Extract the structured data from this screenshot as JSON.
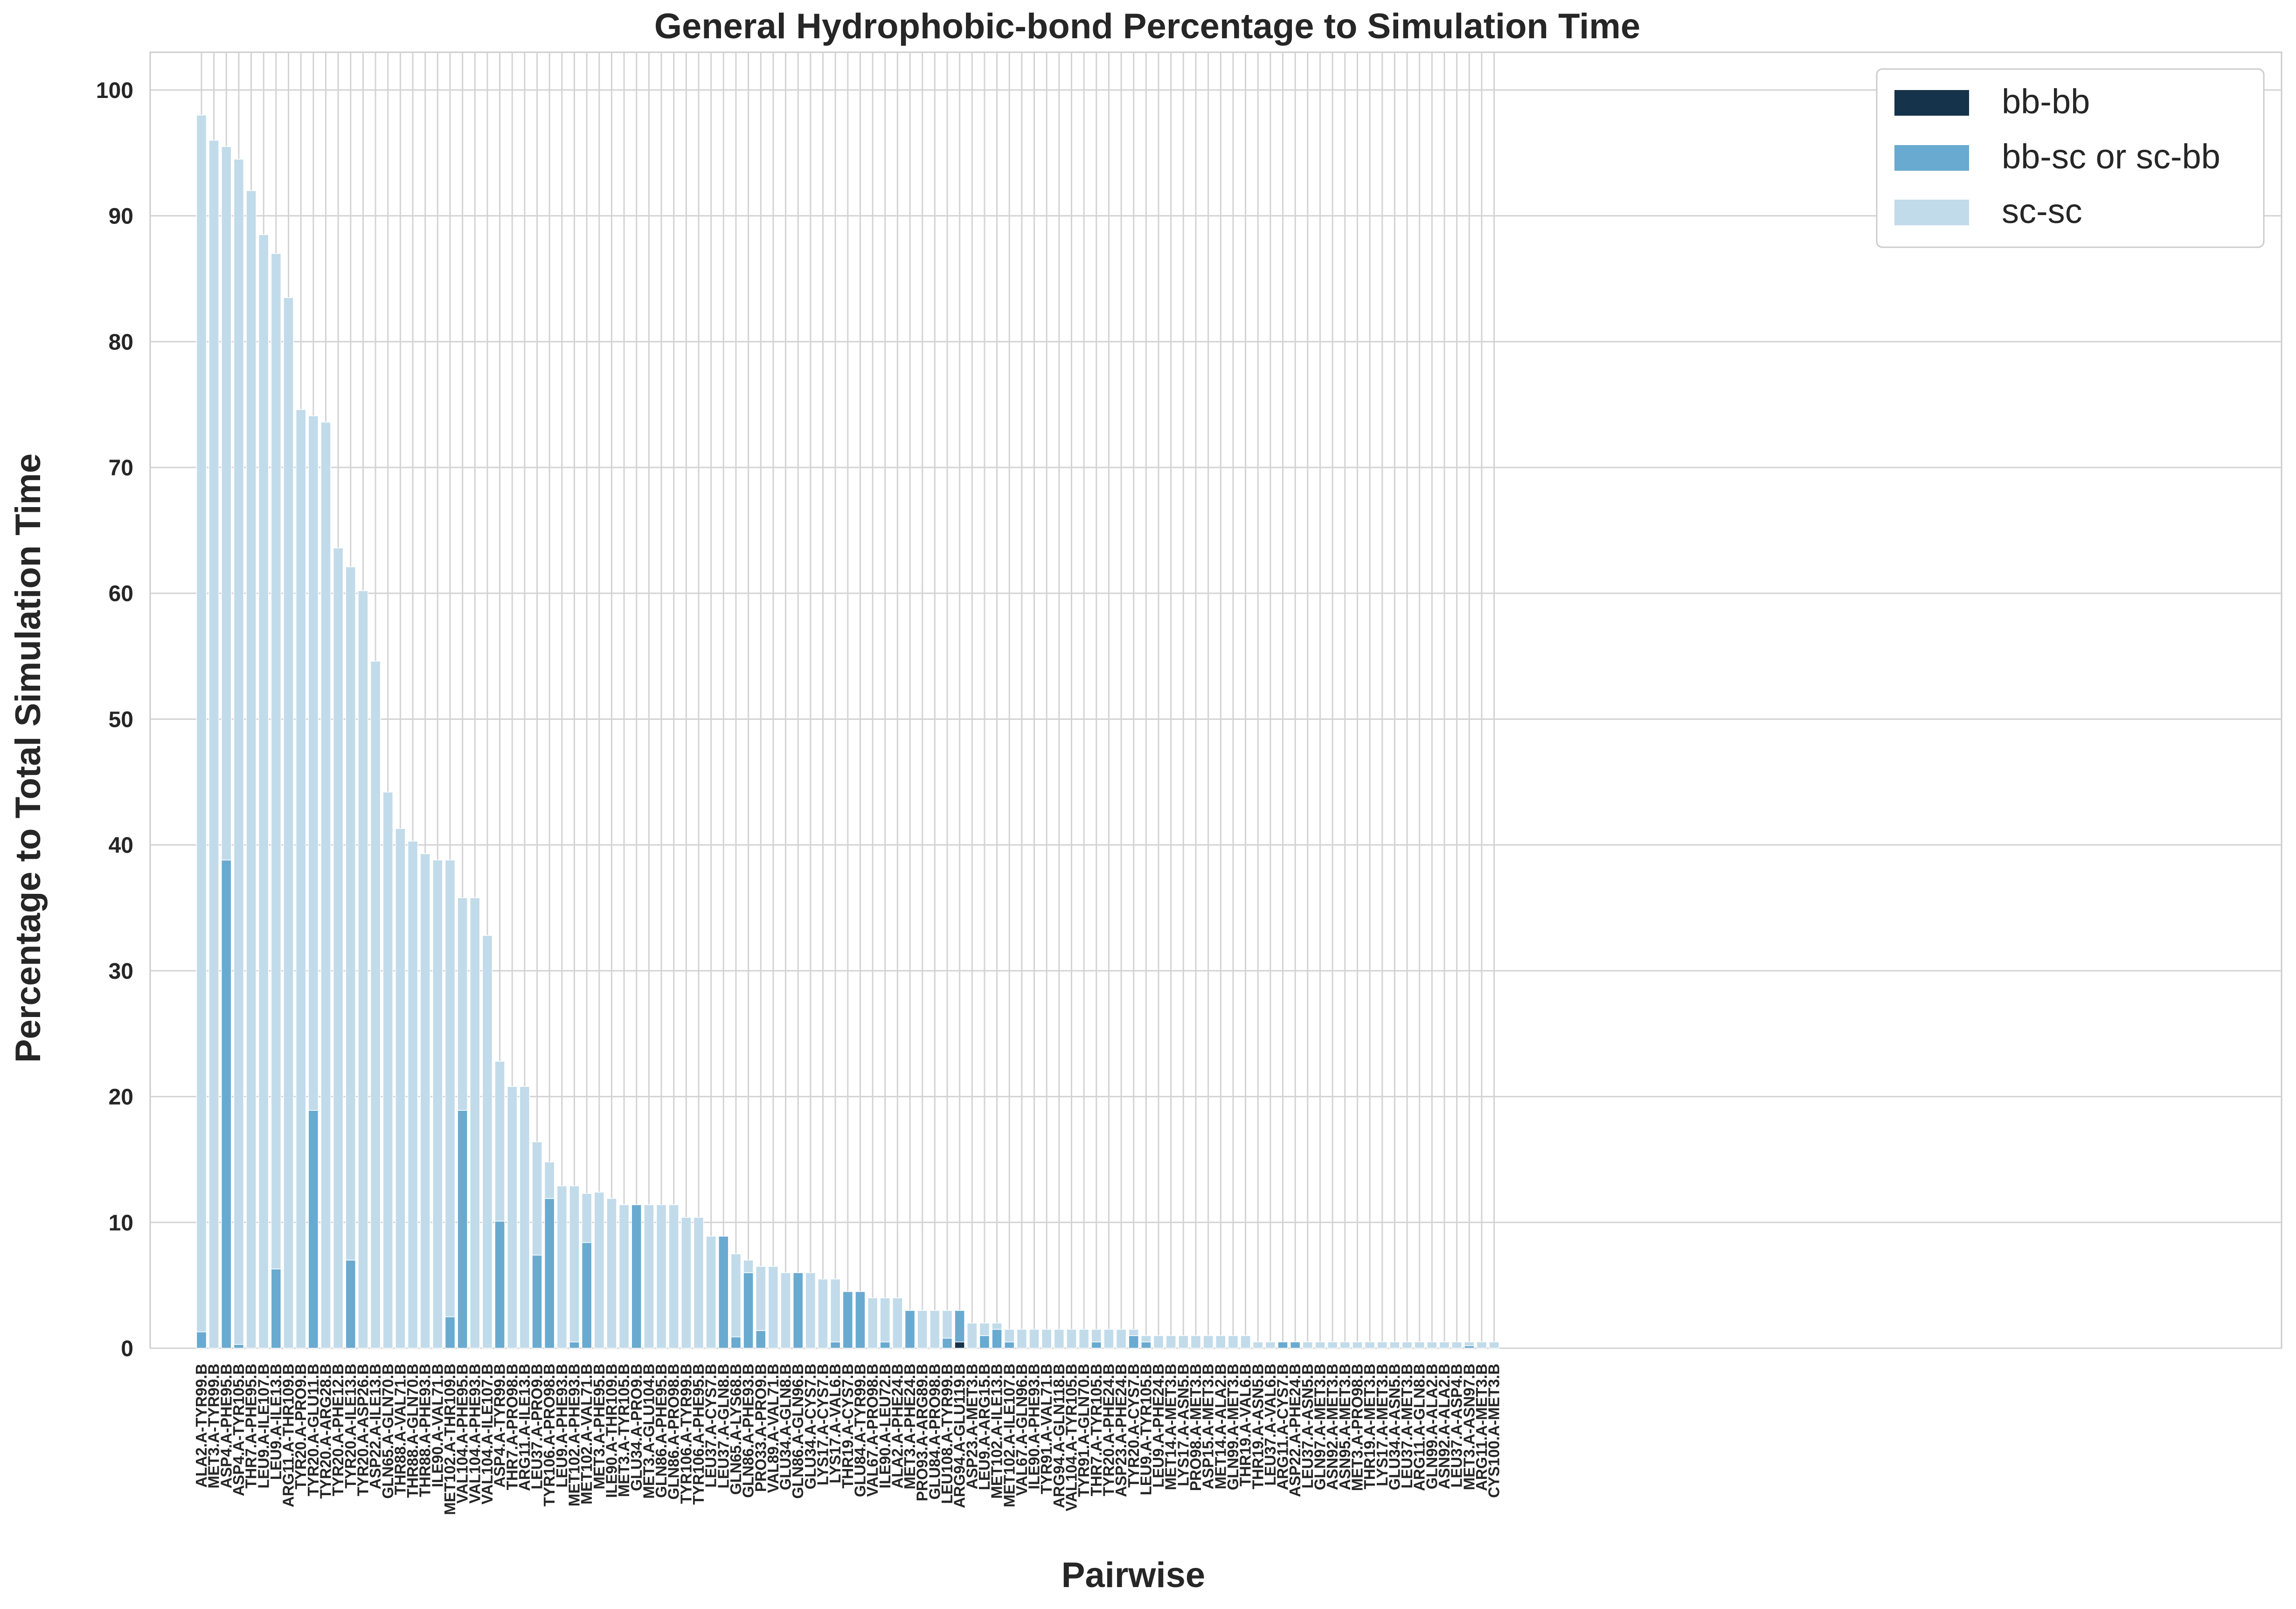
{
  "chart_data": {
    "type": "bar",
    "stacked": true,
    "title": "General Hydrophobic-bond Percentage to Simulation Time",
    "xlabel": "Pairwise",
    "ylabel": "Percentage to Total Simulation Time",
    "ylim": [
      0,
      103
    ],
    "yticks": [
      0,
      10,
      20,
      30,
      40,
      50,
      60,
      70,
      80,
      90,
      100
    ],
    "grid": true,
    "legend_position": "top-right",
    "categories": [
      "ALA2.A-TYR99.B",
      "MET3.A-TYR99.B",
      "ASP4.A-PHE95.B",
      "ASP4.A-TYR105.B",
      "THR7.A-PHE95.B",
      "LEU9.A-ILE107.B",
      "LEU9.A-ILE13.B",
      "ARG11.A-THR109.B",
      "TYR20.A-PRO9.B",
      "TYR20.A-GLU11.B",
      "TYR20.A-ARG28.B",
      "TYR20.A-PHE12.B",
      "TYR20.A-ILE13.B",
      "TYR20.A-ASP26.B",
      "ASP22.A-ILE13.B",
      "GLN65.A-GLN70.B",
      "THR88.A-VAL71.B",
      "THR88.A-GLN70.B",
      "THR88.A-PHE93.B",
      "ILE90.A-VAL71.B",
      "MET102.A-THR109.B",
      "VAL104.A-PHE95.B",
      "VAL104.A-PHE93.B",
      "VAL104.A-ILE107.B",
      "ASP4.A-TYR99.B",
      "THR7.A-PRO98.B",
      "ARG11.A-ILE13.B",
      "LEU37.A-PRO9.B",
      "TYR106.A-PRO98.B",
      "LEU9.A-PHE93.B",
      "MET102.A-PHE93.B",
      "MET102.A-VAL71.B",
      "MET3.A-PHE95.B",
      "ILE90.A-THR109.B",
      "MET3.A-TYR105.B",
      "GLU34.A-PRO9.B",
      "MET3.A-GLU104.B",
      "GLN86.A-PHE95.B",
      "GLN86.A-PRO98.B",
      "TYR106.A-TYR99.B",
      "TYR106.A-PHE95.B",
      "LEU37.A-CYS7.B",
      "LEU37.A-GLN8.B",
      "GLN65.A-LYS68.B",
      "GLN86.A-PHE93.B",
      "PRO33.A-PRO9.B",
      "VAL89.A-VAL71.B",
      "GLU34.A-GLN8.B",
      "GLN86.A-GLN96.B",
      "GLU34.A-CYS7.B",
      "LYS17.A-CYS7.B",
      "LYS17.A-VAL6.B",
      "THR19.A-CYS7.B",
      "GLU84.A-TYR99.B",
      "VAL67.A-PRO98.B",
      "ILE90.A-LEU72.B",
      "ALA2.A-PHE24.B",
      "MET3.A-PHE24.B",
      "PRO93.A-ARG89.B",
      "GLU84.A-PRO98.B",
      "LEU108.A-TYR99.B",
      "ARG94.A-GLU119.B",
      "ASP23.A-MET3.B",
      "LEU9.A-ARG15.B",
      "MET102.A-ILE13.B",
      "MET102.A-ILE107.B",
      "VAL67.A-GLN96.B",
      "ILE90.A-PHE93.B",
      "TYR91.A-VAL71.B",
      "ARG94.A-GLN118.B",
      "VAL104.A-TYR105.B",
      "TYR91.A-GLN70.B",
      "THR7.A-TYR105.B",
      "TYR20.A-PHE24.B",
      "ASP23.A-PHE24.B",
      "TYR20.A-CYS7.B",
      "LEU9.A-TYR105.B",
      "LEU9.A-PHE24.B",
      "MET14.A-MET3.B",
      "LYS17.A-ASN5.B",
      "PRO98.A-MET3.B",
      "ASP15.A-MET3.B",
      "MET14.A-ALA2.B",
      "GLN99.A-MET3.B",
      "THR19.A-VAL6.B",
      "THR19.A-ASN5.B",
      "LEU37.A-VAL6.B",
      "ARG11.A-CYS7.B",
      "ASP22.A-PHE24.B",
      "LEU37.A-ASN5.B",
      "GLN97.A-MET3.B",
      "ASN92.A-MET3.B",
      "ASN95.A-MET3.B",
      "MET3.A-PRO98.B",
      "THR19.A-MET3.B",
      "LYS17.A-MET3.B",
      "GLU34.A-ASN5.B",
      "LEU37.A-MET3.B",
      "ARG11.A-GLN8.B",
      "GLN99.A-ALA2.B",
      "ASN92.A-ALA2.B",
      "LEU37.A-ASP4.B",
      "MET3.A-ASN97.B",
      "ARG11.A-MET3.B",
      "CYS100.A-MET3.B"
    ],
    "series": [
      {
        "name": "bb-bb",
        "color": "#15334a",
        "values": [
          0,
          0,
          0,
          0,
          0,
          0,
          0,
          0,
          0,
          0,
          0,
          0,
          0,
          0,
          0,
          0,
          0,
          0,
          0,
          0,
          0,
          0,
          0,
          0,
          0,
          0,
          0,
          0,
          0,
          0,
          0,
          0,
          0,
          0,
          0,
          0,
          0,
          0,
          0,
          0,
          0,
          0,
          0,
          0,
          0,
          0,
          0,
          0,
          0,
          0,
          0,
          0,
          0,
          0,
          0,
          0,
          0,
          0,
          0,
          0,
          0,
          0.5,
          0,
          0,
          0,
          0,
          0,
          0,
          0,
          0,
          0,
          0,
          0,
          0,
          0,
          0,
          0,
          0,
          0,
          0,
          0,
          0,
          0,
          0,
          0,
          0,
          0,
          0,
          0,
          0,
          0,
          0,
          0,
          0,
          0,
          0,
          0,
          0,
          0,
          0,
          0,
          0,
          0,
          0,
          0
        ]
      },
      {
        "name": "bb-sc or sc-bb",
        "color": "#69aad0",
        "values": [
          1.3,
          0,
          38.8,
          0.3,
          0,
          0,
          6.3,
          0,
          0,
          18.9,
          0,
          0,
          7.0,
          0,
          0,
          0,
          0,
          0,
          0,
          0,
          2.5,
          18.9,
          0,
          0,
          10.1,
          0,
          0,
          7.4,
          11.9,
          0,
          0.5,
          8.4,
          0,
          0,
          0,
          11.4,
          0,
          0,
          0,
          0,
          0,
          0,
          8.9,
          0.9,
          6.0,
          1.4,
          0,
          0,
          6.0,
          0,
          0,
          0.5,
          4.5,
          4.5,
          0,
          0.5,
          0,
          3.0,
          0,
          0,
          0.8,
          2.5,
          0,
          1.0,
          1.5,
          0.5,
          0,
          0,
          0,
          0,
          0,
          0,
          0.5,
          0,
          0,
          1.0,
          0.5,
          0,
          0,
          0,
          0,
          0,
          0,
          0,
          0,
          0,
          0,
          0.5,
          0.5,
          0,
          0,
          0,
          0,
          0,
          0,
          0,
          0,
          0,
          0,
          0,
          0,
          0,
          0.2,
          0,
          0
        ]
      },
      {
        "name": "sc-sc",
        "color": "#c1dbea",
        "values": [
          96.7,
          96.0,
          56.7,
          94.2,
          92.0,
          88.5,
          80.7,
          83.5,
          74.6,
          55.2,
          73.6,
          63.6,
          55.1,
          60.2,
          54.6,
          44.2,
          41.3,
          40.3,
          39.3,
          38.8,
          36.3,
          16.9,
          35.8,
          32.8,
          12.7,
          20.8,
          20.8,
          9.0,
          2.9,
          12.9,
          12.4,
          3.9,
          12.4,
          11.9,
          11.4,
          0,
          11.4,
          11.4,
          11.4,
          10.4,
          10.4,
          8.9,
          0,
          6.6,
          1.0,
          5.1,
          6.5,
          6.0,
          0,
          6.0,
          5.5,
          5.0,
          0,
          0,
          4.0,
          3.5,
          4.0,
          0,
          3.0,
          3.0,
          2.2,
          0,
          2.0,
          1.0,
          0.5,
          1.0,
          1.5,
          1.5,
          1.5,
          1.5,
          1.5,
          1.5,
          1.0,
          1.5,
          1.5,
          0.5,
          0.5,
          1.0,
          1.0,
          1.0,
          1.0,
          1.0,
          1.0,
          1.0,
          1.0,
          0.5,
          0.5,
          0,
          0,
          0.5,
          0.5,
          0.5,
          0.5,
          0.5,
          0.5,
          0.5,
          0.5,
          0.5,
          0.5,
          0.5,
          0.5,
          0.5,
          0.3,
          0.5,
          0.5
        ]
      }
    ]
  }
}
